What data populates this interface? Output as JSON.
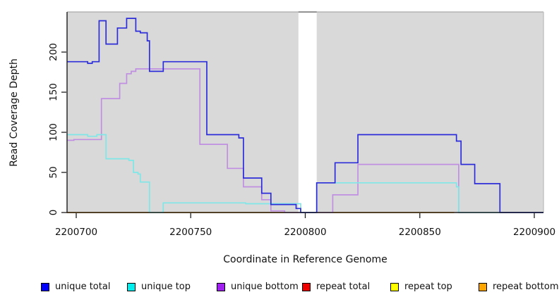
{
  "chart_data": {
    "type": "line",
    "step": true,
    "title": "",
    "xlabel": "Coordinate in Reference Genome",
    "ylabel": "Read Coverage Depth",
    "xlim": [
      2200696,
      2200904
    ],
    "ylim": [
      0,
      250
    ],
    "x_ticks": [
      2200700,
      2200750,
      2200800,
      2200850,
      2200900
    ],
    "x_tick_labels": [
      "2200700",
      "2200750",
      "2200800",
      "2200850",
      "2200900"
    ],
    "y_ticks": [
      0,
      50,
      100,
      150,
      200
    ],
    "y_tick_labels": [
      "0",
      "50",
      "100",
      "150",
      "200"
    ],
    "grid": false,
    "panel_background": "#d9d9d9",
    "no_data_gap": {
      "x_start": 2200797,
      "x_end": 2200805
    },
    "legend_position": "bottom",
    "series": [
      {
        "name": "unique total",
        "legend_color": "#0000FF",
        "line_color": "#2d2dd9",
        "visible_in_plot": true,
        "segments": [
          [
            [
              2200696,
              188
            ],
            [
              2200705,
              186
            ],
            [
              2200707,
              188
            ],
            [
              2200710,
              239
            ],
            [
              2200713,
              210
            ],
            [
              2200718,
              230
            ],
            [
              2200722,
              242
            ],
            [
              2200726,
              226
            ],
            [
              2200728,
              224
            ],
            [
              2200731,
              214
            ],
            [
              2200732,
              176
            ],
            [
              2200738,
              188
            ],
            [
              2200757,
              97
            ],
            [
              2200771,
              93
            ],
            [
              2200773,
              43
            ],
            [
              2200781,
              24
            ],
            [
              2200785,
              10
            ],
            [
              2200796,
              5
            ],
            [
              2200798,
              0
            ],
            [
              2200805,
              37
            ],
            [
              2200813,
              62
            ],
            [
              2200823,
              97
            ],
            [
              2200866,
              89
            ],
            [
              2200868,
              60
            ],
            [
              2200874,
              36
            ],
            [
              2200885,
              0
            ],
            [
              2200904,
              0
            ]
          ]
        ]
      },
      {
        "name": "unique top",
        "legend_color": "#00EEEE",
        "line_color": "#7fe7e7",
        "visible_in_plot": true,
        "segments": [
          [
            [
              2200696,
              97
            ],
            [
              2200705,
              95
            ],
            [
              2200709,
              97
            ],
            [
              2200713,
              67
            ],
            [
              2200723,
              65
            ],
            [
              2200725,
              50
            ],
            [
              2200727,
              48
            ],
            [
              2200728,
              38
            ],
            [
              2200732,
              0
            ],
            [
              2200738,
              12
            ],
            [
              2200774,
              11
            ],
            [
              2200798,
              0
            ],
            [
              2200805,
              37
            ],
            [
              2200866,
              32
            ],
            [
              2200867,
              0
            ],
            [
              2200904,
              0
            ]
          ]
        ]
      },
      {
        "name": "unique bottom",
        "legend_color": "#A020F0",
        "line_color": "#c18fe2",
        "visible_in_plot": true,
        "segments": [
          [
            [
              2200696,
              90
            ],
            [
              2200699,
              91
            ],
            [
              2200711,
              142
            ],
            [
              2200719,
              161
            ],
            [
              2200722,
              173
            ],
            [
              2200724,
              176
            ],
            [
              2200726,
              179
            ],
            [
              2200754,
              85
            ],
            [
              2200766,
              55
            ],
            [
              2200773,
              32
            ],
            [
              2200781,
              16
            ],
            [
              2200785,
              2
            ],
            [
              2200791,
              0
            ],
            [
              2200812,
              22
            ],
            [
              2200823,
              60
            ],
            [
              2200867,
              0
            ],
            [
              2200904,
              0
            ]
          ]
        ]
      },
      {
        "name": "repeat total",
        "legend_color": "#EE0000",
        "line_color": "#EE0000",
        "visible_in_plot": false,
        "segments": []
      },
      {
        "name": "repeat top",
        "legend_color": "#FFFF00",
        "line_color": "#FFFF00",
        "visible_in_plot": false,
        "segments": []
      },
      {
        "name": "repeat bottom",
        "legend_color": "#FFA500",
        "line_color": "#ff9e0f",
        "visible_in_plot": true,
        "segments": [
          [
            [
              2200696,
              0
            ],
            [
              2200797,
              0
            ]
          ],
          [
            [
              2200805,
              0
            ],
            [
              2200865,
              0
            ]
          ]
        ]
      }
    ]
  }
}
